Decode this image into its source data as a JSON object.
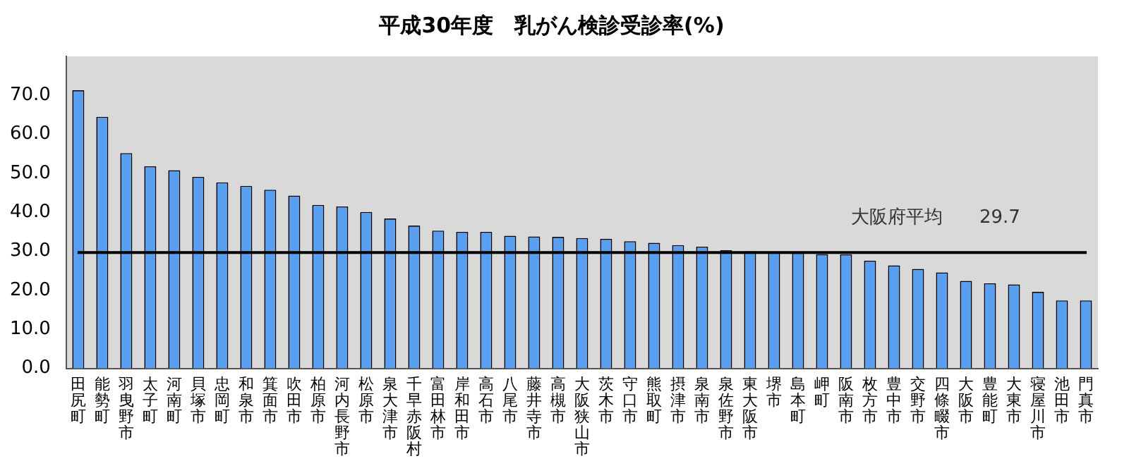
{
  "chart_data": {
    "type": "bar",
    "title": "平成30年度　乳がん検診受診率(%)",
    "categories": [
      "田尻町",
      "能勢町",
      "羽曳野市",
      "太子町",
      "河南町",
      "貝塚市",
      "忠岡町",
      "和泉市",
      "箕面市",
      "吹田市",
      "柏原市",
      "河内長野市",
      "松原市",
      "泉大津市",
      "千早赤阪村",
      "富田林市",
      "岸和田市",
      "高石市",
      "八尾市",
      "藤井寺市",
      "高槻市",
      "大阪狭山市",
      "茨木市",
      "守口市",
      "熊取町",
      "摂津市",
      "泉南市",
      "泉佐野市",
      "東大阪市",
      "堺市",
      "島本町",
      "岬町",
      "阪南市",
      "枚方市",
      "豊中市",
      "交野市",
      "四條畷市",
      "大阪市",
      "豊能町",
      "大東市",
      "寝屋川市",
      "池田市",
      "門真市"
    ],
    "values": [
      71.3,
      64.5,
      55.2,
      51.8,
      50.8,
      49.1,
      47.7,
      46.8,
      45.8,
      44.3,
      41.9,
      41.5,
      40.1,
      38.4,
      36.6,
      35.3,
      35.0,
      35.0,
      34.0,
      33.8,
      33.7,
      33.4,
      33.2,
      32.6,
      32.2,
      31.6,
      31.2,
      30.3,
      30.0,
      29.8,
      29.6,
      29.3,
      29.2,
      27.6,
      26.4,
      25.5,
      24.6,
      22.4,
      21.8,
      21.5,
      19.6,
      17.4,
      17.4
    ],
    "color": "#5a9ef0",
    "ylim": [
      0,
      80
    ],
    "yticks": [
      {
        "value": 0,
        "label": "0.0"
      },
      {
        "value": 10,
        "label": "10.0"
      },
      {
        "value": 20,
        "label": "20.0"
      },
      {
        "value": 30,
        "label": "30.0"
      },
      {
        "value": 40,
        "label": "40.0"
      },
      {
        "value": 50,
        "label": "50.0"
      },
      {
        "value": 60,
        "label": "60.0"
      },
      {
        "value": 70,
        "label": "70.0"
      }
    ],
    "ref_lines": [
      {
        "axis": "y",
        "value": 29.7,
        "label": "大阪府平均　　29.7",
        "color": "#000000"
      }
    ],
    "grid": false,
    "legend": false
  }
}
